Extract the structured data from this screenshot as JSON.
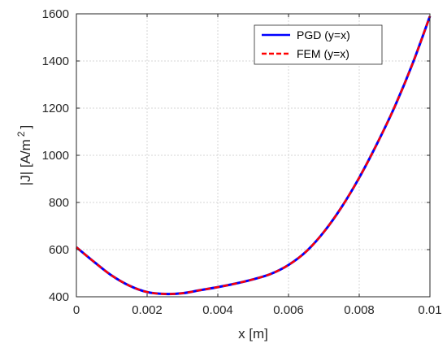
{
  "chart_data": {
    "type": "line",
    "xlabel": "x [m]",
    "ylabel": "|J| [A/m",
    "ylabel_superscript": "2",
    "ylabel_close": "]",
    "xlim": [
      0,
      0.01
    ],
    "ylim": [
      400,
      1600
    ],
    "x_ticks": [
      0,
      0.002,
      0.004,
      0.006,
      0.008,
      0.01
    ],
    "x_tick_labels": [
      "0",
      "0.002",
      "0.004",
      "0.006",
      "0.008",
      "0.01"
    ],
    "y_ticks": [
      400,
      600,
      800,
      1000,
      1200,
      1400,
      1600
    ],
    "y_tick_labels": [
      "400",
      "600",
      "800",
      "1000",
      "1200",
      "1400",
      "1600"
    ],
    "grid": true,
    "legend_position": "top-right",
    "x": [
      0,
      0.0005,
      0.001,
      0.0015,
      0.002,
      0.0025,
      0.003,
      0.0035,
      0.004,
      0.0045,
      0.005,
      0.0055,
      0.006,
      0.0065,
      0.007,
      0.0075,
      0.008,
      0.0085,
      0.009,
      0.0095,
      0.01
    ],
    "series": [
      {
        "name": "PGD (y=x)",
        "color": "#0000ff",
        "style": "solid",
        "values": [
          610,
          548,
          490,
          447,
          420,
          412,
          415,
          428,
          441,
          456,
          474,
          497,
          535,
          592,
          675,
          780,
          905,
          1048,
          1205,
          1385,
          1590
        ]
      },
      {
        "name": "FEM (y=x)",
        "color": "#ff0000",
        "style": "dashed",
        "values": [
          610,
          548,
          490,
          447,
          420,
          412,
          415,
          428,
          441,
          456,
          474,
          497,
          535,
          592,
          675,
          780,
          905,
          1048,
          1205,
          1385,
          1590
        ]
      }
    ]
  }
}
